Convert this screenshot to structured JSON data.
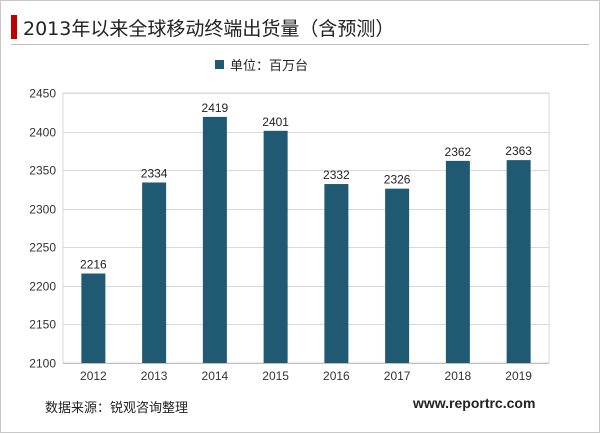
{
  "title": "2013年以来全球移动终端出货量（含预测）",
  "legend_label": "单位：百万台",
  "source": "数据来源：锐观咨询整理",
  "website": "www.reportrc.com",
  "colors": {
    "bar": "#1f5a72",
    "title_accent": "#c00000"
  },
  "chart_data": {
    "type": "bar",
    "categories": [
      "2012",
      "2013",
      "2014",
      "2015",
      "2016",
      "2017",
      "2018",
      "2019"
    ],
    "values": [
      2216,
      2334,
      2419,
      2401,
      2332,
      2326,
      2362,
      2363
    ],
    "ylim": [
      2100,
      2450
    ],
    "yticks": [
      2100,
      2150,
      2200,
      2250,
      2300,
      2350,
      2400,
      2450
    ],
    "grid": true,
    "legend": "top-center"
  }
}
